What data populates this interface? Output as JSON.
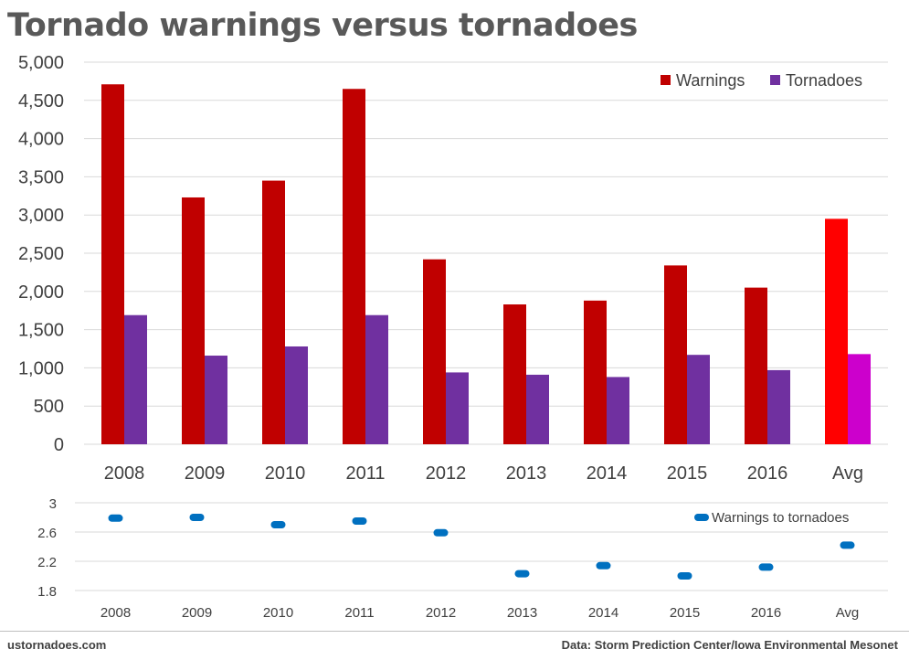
{
  "title": "Tornado warnings versus tornadoes",
  "footer": {
    "left": "ustornadoes.com",
    "right": "Data: Storm Prediction Center/Iowa Environmental Mesonet"
  },
  "chart_data": [
    {
      "type": "bar",
      "title": "Tornado warnings versus tornadoes",
      "categories": [
        "2008",
        "2009",
        "2010",
        "2011",
        "2012",
        "2013",
        "2014",
        "2015",
        "2016",
        "Avg"
      ],
      "series": [
        {
          "name": "Warnings",
          "color": "#c00000",
          "highlight_color": "#ff0000",
          "values": [
            4710,
            3230,
            3450,
            4650,
            2420,
            1830,
            1880,
            2340,
            2050,
            2950
          ]
        },
        {
          "name": "Tornadoes",
          "color": "#7030a0",
          "highlight_color": "#cc00cc",
          "values": [
            1690,
            1160,
            1280,
            1690,
            940,
            910,
            880,
            1170,
            970,
            1180
          ]
        }
      ],
      "ylim": [
        0,
        5000
      ],
      "yticks": [
        0,
        500,
        1000,
        1500,
        2000,
        2500,
        3000,
        3500,
        4000,
        4500,
        5000
      ],
      "ytick_labels": [
        "0",
        "500",
        "1,000",
        "1,500",
        "2,000",
        "2,500",
        "3,000",
        "3,500",
        "4,000",
        "4,500",
        "5,000"
      ],
      "grid": true,
      "legend": "top-right"
    },
    {
      "type": "scatter",
      "categories": [
        "2008",
        "2009",
        "2010",
        "2011",
        "2012",
        "2013",
        "2014",
        "2015",
        "2016",
        "Avg"
      ],
      "series": [
        {
          "name": "Warnings to tornadoes",
          "color": "#0070c0",
          "values": [
            2.79,
            2.8,
            2.7,
            2.75,
            2.59,
            2.03,
            2.14,
            2.0,
            2.12,
            2.42
          ]
        }
      ],
      "ylim": [
        1.8,
        3
      ],
      "yticks": [
        1.8,
        2.2,
        2.6,
        3
      ],
      "ytick_labels": [
        "1.8",
        "2.2",
        "2.6",
        "3"
      ],
      "grid": true,
      "legend": "top-right"
    }
  ]
}
